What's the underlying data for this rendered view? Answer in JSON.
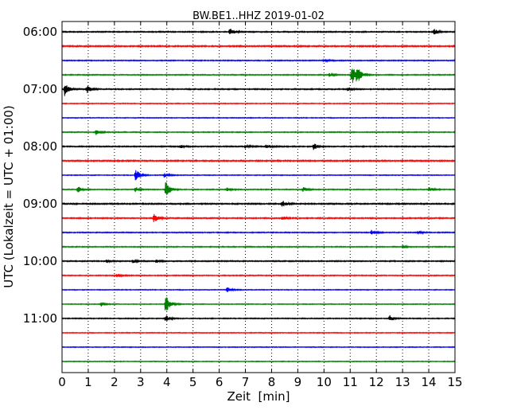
{
  "chart_data": {
    "type": "line",
    "title": "BW.BE1..HHZ 2019-01-02",
    "xlabel": "Zeit  [min]",
    "ylabel": "UTC (Lokalzeit = UTC + 01:00)",
    "xlim": [
      0,
      15
    ],
    "x_ticks": [
      "0",
      "1",
      "2",
      "3",
      "4",
      "5",
      "6",
      "7",
      "8",
      "9",
      "10",
      "11",
      "12",
      "13",
      "14",
      "15"
    ],
    "y_ticks": [
      {
        "label": "06:00",
        "row": 0
      },
      {
        "label": "07:00",
        "row": 4
      },
      {
        "label": "08:00",
        "row": 8
      },
      {
        "label": "09:00",
        "row": 12
      },
      {
        "label": "10:00",
        "row": 16
      },
      {
        "label": "11:00",
        "row": 20
      }
    ],
    "grid": "vertical dotted",
    "row_interval_min": 15,
    "row_colors": [
      "#000000",
      "#ff0000",
      "#0000ff",
      "#008000"
    ],
    "noise": [
      0.7,
      0.8,
      0.6,
      0.6,
      0.7,
      0.5,
      0.5,
      0.6,
      0.7,
      0.8,
      0.5,
      0.6,
      0.8,
      0.7,
      0.6,
      0.6,
      0.7,
      0.6,
      0.5,
      0.5,
      0.6,
      0.5,
      0.5,
      0.5
    ],
    "events": [
      {
        "row": 0,
        "t": 6.4,
        "amp": 5
      },
      {
        "row": 0,
        "t": 14.2,
        "amp": 4
      },
      {
        "row": 2,
        "t": 10.0,
        "amp": 1.5
      },
      {
        "row": 3,
        "t": 10.2,
        "amp": 2
      },
      {
        "row": 3,
        "t": 11.05,
        "amp": 14
      },
      {
        "row": 3,
        "t": 11.25,
        "amp": 9
      },
      {
        "row": 4,
        "t": 0.1,
        "amp": 8
      },
      {
        "row": 4,
        "t": 0.95,
        "amp": 5
      },
      {
        "row": 4,
        "t": 10.9,
        "amp": 3
      },
      {
        "row": 7,
        "t": 1.3,
        "amp": 3
      },
      {
        "row": 8,
        "t": 4.5,
        "amp": 2
      },
      {
        "row": 8,
        "t": 7.0,
        "amp": 2
      },
      {
        "row": 8,
        "t": 7.8,
        "amp": 3
      },
      {
        "row": 8,
        "t": 9.6,
        "amp": 4
      },
      {
        "row": 10,
        "t": 2.8,
        "amp": 9
      },
      {
        "row": 10,
        "t": 3.9,
        "amp": 3
      },
      {
        "row": 11,
        "t": 0.6,
        "amp": 4
      },
      {
        "row": 11,
        "t": 2.8,
        "amp": 3
      },
      {
        "row": 11,
        "t": 3.95,
        "amp": 11
      },
      {
        "row": 11,
        "t": 6.3,
        "amp": 2
      },
      {
        "row": 11,
        "t": 9.2,
        "amp": 3
      },
      {
        "row": 11,
        "t": 14.0,
        "amp": 3
      },
      {
        "row": 12,
        "t": 8.4,
        "amp": 4
      },
      {
        "row": 13,
        "t": 3.5,
        "amp": 6
      },
      {
        "row": 13,
        "t": 8.4,
        "amp": 2
      },
      {
        "row": 14,
        "t": 11.8,
        "amp": 3
      },
      {
        "row": 14,
        "t": 13.6,
        "amp": 2
      },
      {
        "row": 15,
        "t": 13.0,
        "amp": 2
      },
      {
        "row": 16,
        "t": 1.7,
        "amp": 2
      },
      {
        "row": 16,
        "t": 2.7,
        "amp": 2
      },
      {
        "row": 16,
        "t": 3.6,
        "amp": 2
      },
      {
        "row": 17,
        "t": 2.1,
        "amp": 2
      },
      {
        "row": 18,
        "t": 6.3,
        "amp": 3
      },
      {
        "row": 19,
        "t": 1.5,
        "amp": 3
      },
      {
        "row": 19,
        "t": 3.95,
        "amp": 14
      },
      {
        "row": 20,
        "t": 3.95,
        "amp": 4
      },
      {
        "row": 20,
        "t": 12.5,
        "amp": 4
      }
    ]
  }
}
